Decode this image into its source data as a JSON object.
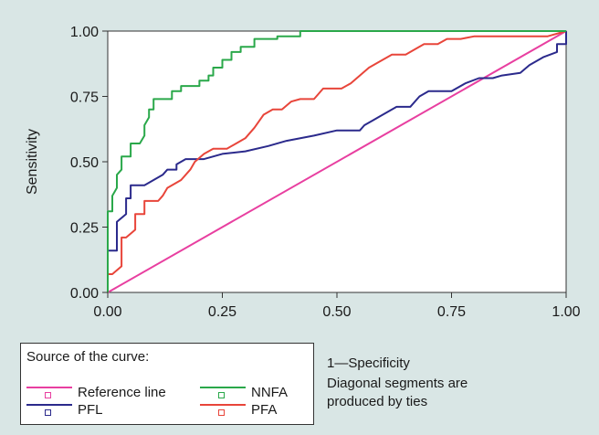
{
  "chart_data": {
    "type": "line",
    "title": "",
    "xlabel": "1—Specificity",
    "ylabel": "Sensitivity",
    "xlim": [
      0,
      1
    ],
    "ylim": [
      0,
      1
    ],
    "x_ticks": [
      "0.00",
      "0.25",
      "0.50",
      "0.75",
      "1.00"
    ],
    "y_ticks": [
      "0.00",
      "0.25",
      "0.50",
      "0.75",
      "1.00"
    ],
    "grid": false,
    "legend_title": "Source of the curve:",
    "legend_placement": "bottom-left",
    "note_lines": [
      "Diagonal segments are",
      "produced by ties"
    ],
    "series": [
      {
        "name": "Reference line",
        "color": "#e83fa0",
        "points": [
          [
            0,
            0
          ],
          [
            1,
            1
          ]
        ]
      },
      {
        "name": "NNFA",
        "color": "#2aa84a",
        "points": [
          [
            0,
            0
          ],
          [
            0,
            0.31
          ],
          [
            0.01,
            0.31
          ],
          [
            0.01,
            0.37
          ],
          [
            0.02,
            0.4
          ],
          [
            0.02,
            0.45
          ],
          [
            0.03,
            0.47
          ],
          [
            0.03,
            0.52
          ],
          [
            0.05,
            0.52
          ],
          [
            0.05,
            0.57
          ],
          [
            0.07,
            0.57
          ],
          [
            0.08,
            0.6
          ],
          [
            0.08,
            0.64
          ],
          [
            0.09,
            0.67
          ],
          [
            0.09,
            0.7
          ],
          [
            0.1,
            0.7
          ],
          [
            0.1,
            0.74
          ],
          [
            0.14,
            0.74
          ],
          [
            0.14,
            0.77
          ],
          [
            0.16,
            0.77
          ],
          [
            0.16,
            0.79
          ],
          [
            0.2,
            0.79
          ],
          [
            0.2,
            0.81
          ],
          [
            0.22,
            0.81
          ],
          [
            0.22,
            0.83
          ],
          [
            0.23,
            0.83
          ],
          [
            0.23,
            0.86
          ],
          [
            0.25,
            0.86
          ],
          [
            0.25,
            0.89
          ],
          [
            0.27,
            0.89
          ],
          [
            0.27,
            0.92
          ],
          [
            0.29,
            0.92
          ],
          [
            0.29,
            0.94
          ],
          [
            0.32,
            0.94
          ],
          [
            0.32,
            0.97
          ],
          [
            0.37,
            0.97
          ],
          [
            0.37,
            0.98
          ],
          [
            0.42,
            0.98
          ],
          [
            0.42,
            1.0
          ],
          [
            1,
            1.0
          ]
        ]
      },
      {
        "name": "PFL",
        "color": "#2b2a8c",
        "points": [
          [
            0,
            0
          ],
          [
            0,
            0.16
          ],
          [
            0.02,
            0.16
          ],
          [
            0.02,
            0.27
          ],
          [
            0.04,
            0.3
          ],
          [
            0.04,
            0.36
          ],
          [
            0.05,
            0.36
          ],
          [
            0.05,
            0.41
          ],
          [
            0.08,
            0.41
          ],
          [
            0.1,
            0.43
          ],
          [
            0.12,
            0.45
          ],
          [
            0.13,
            0.47
          ],
          [
            0.15,
            0.47
          ],
          [
            0.15,
            0.49
          ],
          [
            0.17,
            0.51
          ],
          [
            0.21,
            0.51
          ],
          [
            0.25,
            0.53
          ],
          [
            0.3,
            0.54
          ],
          [
            0.35,
            0.56
          ],
          [
            0.39,
            0.58
          ],
          [
            0.45,
            0.6
          ],
          [
            0.5,
            0.62
          ],
          [
            0.55,
            0.62
          ],
          [
            0.56,
            0.64
          ],
          [
            0.58,
            0.66
          ],
          [
            0.6,
            0.68
          ],
          [
            0.63,
            0.71
          ],
          [
            0.66,
            0.71
          ],
          [
            0.68,
            0.75
          ],
          [
            0.7,
            0.77
          ],
          [
            0.75,
            0.77
          ],
          [
            0.78,
            0.8
          ],
          [
            0.81,
            0.82
          ],
          [
            0.84,
            0.82
          ],
          [
            0.86,
            0.83
          ],
          [
            0.9,
            0.84
          ],
          [
            0.92,
            0.87
          ],
          [
            0.95,
            0.9
          ],
          [
            0.98,
            0.92
          ],
          [
            0.98,
            0.95
          ],
          [
            1,
            0.95
          ],
          [
            1,
            1.0
          ]
        ]
      },
      {
        "name": "PFA",
        "color": "#e8453a",
        "points": [
          [
            0,
            0
          ],
          [
            0,
            0.07
          ],
          [
            0.01,
            0.07
          ],
          [
            0.03,
            0.1
          ],
          [
            0.03,
            0.21
          ],
          [
            0.04,
            0.21
          ],
          [
            0.06,
            0.24
          ],
          [
            0.06,
            0.3
          ],
          [
            0.08,
            0.3
          ],
          [
            0.08,
            0.35
          ],
          [
            0.11,
            0.35
          ],
          [
            0.12,
            0.37
          ],
          [
            0.13,
            0.4
          ],
          [
            0.16,
            0.43
          ],
          [
            0.18,
            0.47
          ],
          [
            0.19,
            0.5
          ],
          [
            0.21,
            0.53
          ],
          [
            0.23,
            0.55
          ],
          [
            0.26,
            0.55
          ],
          [
            0.28,
            0.57
          ],
          [
            0.3,
            0.59
          ],
          [
            0.32,
            0.63
          ],
          [
            0.34,
            0.68
          ],
          [
            0.36,
            0.7
          ],
          [
            0.38,
            0.7
          ],
          [
            0.4,
            0.73
          ],
          [
            0.42,
            0.74
          ],
          [
            0.45,
            0.74
          ],
          [
            0.47,
            0.78
          ],
          [
            0.51,
            0.78
          ],
          [
            0.53,
            0.8
          ],
          [
            0.55,
            0.83
          ],
          [
            0.57,
            0.86
          ],
          [
            0.59,
            0.88
          ],
          [
            0.62,
            0.91
          ],
          [
            0.65,
            0.91
          ],
          [
            0.67,
            0.93
          ],
          [
            0.69,
            0.95
          ],
          [
            0.72,
            0.95
          ],
          [
            0.74,
            0.97
          ],
          [
            0.77,
            0.97
          ],
          [
            0.8,
            0.98
          ],
          [
            0.96,
            0.98
          ],
          [
            1,
            1.0
          ]
        ]
      }
    ]
  }
}
